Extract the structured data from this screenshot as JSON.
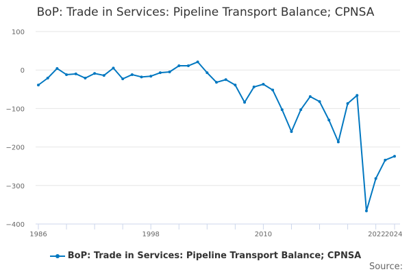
{
  "chart_data": {
    "type": "line",
    "title": "BoP: Trade in Services: Pipeline Transport Balance; CPNSA",
    "xlabel": "",
    "ylabel": "",
    "x": [
      1986,
      1987,
      1988,
      1989,
      1990,
      1991,
      1992,
      1993,
      1994,
      1995,
      1996,
      1997,
      1998,
      1999,
      2000,
      2001,
      2002,
      2003,
      2004,
      2005,
      2006,
      2007,
      2008,
      2009,
      2010,
      2011,
      2012,
      2013,
      2014,
      2015,
      2016,
      2017,
      2018,
      2019,
      2020,
      2021,
      2022,
      2023,
      2024
    ],
    "series": [
      {
        "name": "BoP: Trade in Services: Pipeline Transport Balance; CPNSA",
        "color": "#0077c0",
        "values": [
          -39,
          -21,
          4,
          -12,
          -10,
          -21,
          -9,
          -14,
          5,
          -23,
          -12,
          -18,
          -16,
          -7,
          -5,
          11,
          11,
          21,
          -7,
          -32,
          -25,
          -39,
          -84,
          -44,
          -37,
          -52,
          -103,
          -160,
          -103,
          -69,
          -82,
          -130,
          -187,
          -87,
          -66,
          -366,
          -282,
          -234,
          -224
        ]
      }
    ],
    "ylim": [
      -400,
      100
    ],
    "yticks": [
      "100",
      "0",
      "−100",
      "−200",
      "−300",
      "−400"
    ],
    "ytick_values": [
      100,
      0,
      -100,
      -200,
      -300,
      -400
    ],
    "xticks": [
      "1986",
      "1998",
      "2010",
      "2022",
      "2024"
    ],
    "xtick_values": [
      1986,
      1998,
      2010,
      2022,
      2024
    ],
    "grid": true,
    "legend": "bottom"
  },
  "source_label": "Source:"
}
